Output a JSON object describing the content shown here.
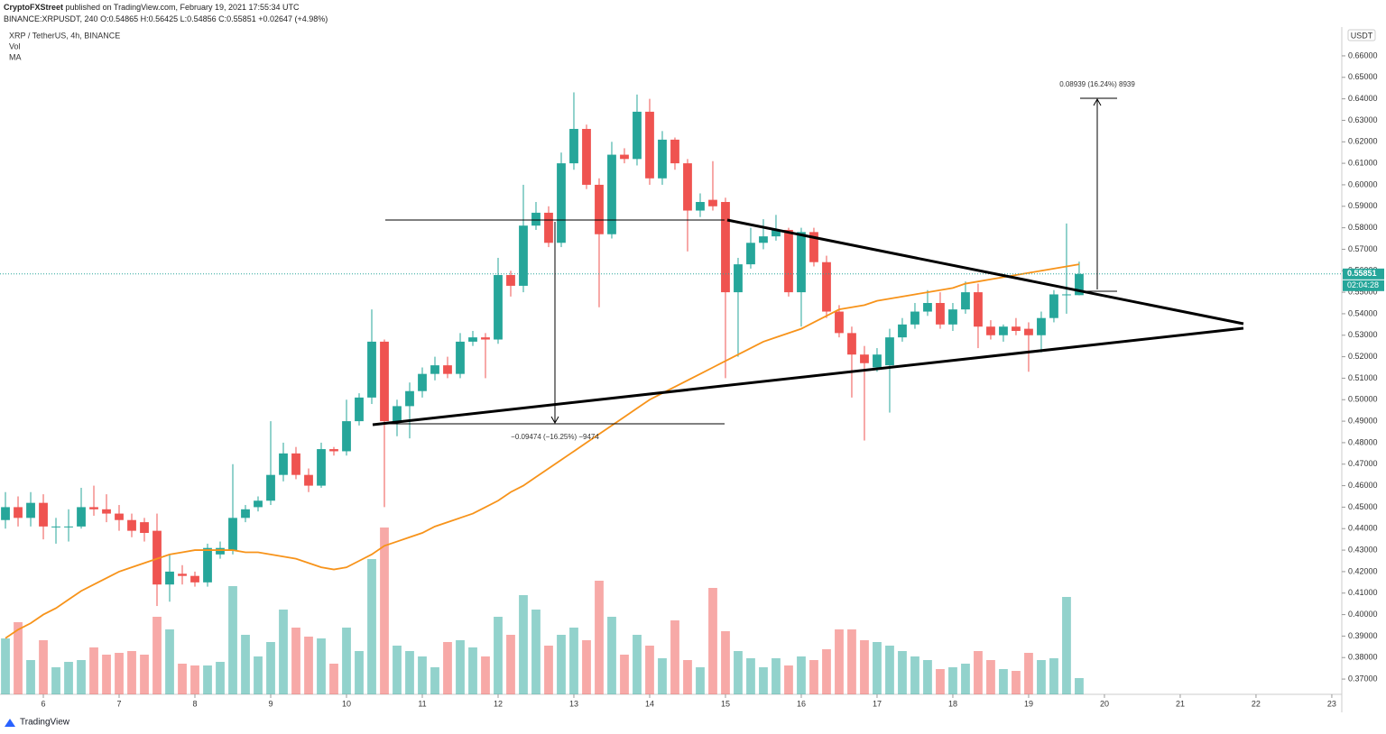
{
  "header": {
    "publisher": "CryptoFXStreet",
    "published": "published on TradingView.com, February 19, 2021 17:55:34 UTC",
    "symbol": "BINANCE:XRPUSDT, 240",
    "change": "+0.02647 (+4.98%)",
    "ohlc": "O:0.54865 H:0.56425 L:0.54856 C:0.55851"
  },
  "legend": [
    "XRP / TetherUS, 4h, BINANCE",
    "Vol",
    "MA"
  ],
  "currency": "USDT",
  "last_price_label": "0.55851",
  "countdown": "02:04:28",
  "annotations": {
    "upper_measure": "0.08939 (16.24%) 8939",
    "lower_measure": "−0.09474 (−16.25%) −9474"
  },
  "footer": "TradingView",
  "chart_data": {
    "type": "candlestick",
    "up_color": "#26a69a",
    "down_color": "#ef5350",
    "ma_color": "#f7931a",
    "open": [
      0.444,
      0.45,
      0.445,
      0.452,
      0.441,
      0.441,
      0.441,
      0.45,
      0.449,
      0.447,
      0.444,
      0.443,
      0.439,
      0.414,
      0.419,
      0.418,
      0.415,
      0.428,
      0.43,
      0.445,
      0.45,
      0.453,
      0.465,
      0.475,
      0.465,
      0.46,
      0.477,
      0.476,
      0.49,
      0.501,
      0.527,
      0.49,
      0.497,
      0.504,
      0.512,
      0.516,
      0.512,
      0.527,
      0.529,
      0.528,
      0.558,
      0.553,
      0.581,
      0.587,
      0.573,
      0.61,
      0.626,
      0.6,
      0.577,
      0.614,
      0.612,
      0.634,
      0.603,
      0.621,
      0.61,
      0.588,
      0.593,
      0.592,
      0.55,
      0.563,
      0.573,
      0.576,
      0.579,
      0.55,
      0.578,
      0.564,
      0.541,
      0.531,
      0.521,
      0.515,
      0.516,
      0.529,
      0.535,
      0.541,
      0.545,
      0.535,
      0.542,
      0.55,
      0.534,
      0.53,
      0.534,
      0.533,
      0.53,
      0.538,
      0.549,
      0.54865
    ],
    "high": [
      0.457,
      0.455,
      0.457,
      0.456,
      0.445,
      0.449,
      0.459,
      0.46,
      0.456,
      0.451,
      0.447,
      0.445,
      0.447,
      0.428,
      0.423,
      0.42,
      0.433,
      0.434,
      0.47,
      0.451,
      0.455,
      0.49,
      0.48,
      0.478,
      0.468,
      0.48,
      0.478,
      0.5,
      0.503,
      0.542,
      0.528,
      0.5,
      0.508,
      0.515,
      0.52,
      0.52,
      0.531,
      0.532,
      0.531,
      0.566,
      0.56,
      0.6,
      0.592,
      0.59,
      0.615,
      0.643,
      0.628,
      0.603,
      0.62,
      0.617,
      0.642,
      0.64,
      0.625,
      0.622,
      0.612,
      0.596,
      0.611,
      0.594,
      0.566,
      0.58,
      0.584,
      0.586,
      0.58,
      0.58,
      0.58,
      0.567,
      0.544,
      0.534,
      0.525,
      0.524,
      0.533,
      0.538,
      0.545,
      0.551,
      0.55,
      0.545,
      0.555,
      0.554,
      0.537,
      0.535,
      0.538,
      0.536,
      0.541,
      0.551,
      0.582,
      0.56425
    ],
    "low": [
      0.44,
      0.441,
      0.441,
      0.435,
      0.433,
      0.434,
      0.44,
      0.446,
      0.443,
      0.439,
      0.436,
      0.434,
      0.404,
      0.406,
      0.414,
      0.413,
      0.413,
      0.426,
      0.428,
      0.443,
      0.448,
      0.451,
      0.462,
      0.463,
      0.457,
      0.459,
      0.474,
      0.474,
      0.488,
      0.498,
      0.45,
      0.483,
      0.482,
      0.501,
      0.509,
      0.51,
      0.51,
      0.525,
      0.51,
      0.526,
      0.548,
      0.55,
      0.579,
      0.571,
      0.571,
      0.607,
      0.598,
      0.543,
      0.575,
      0.61,
      0.609,
      0.6,
      0.6,
      0.607,
      0.569,
      0.585,
      0.588,
      0.51,
      0.52,
      0.561,
      0.57,
      0.574,
      0.548,
      0.534,
      0.562,
      0.538,
      0.529,
      0.501,
      0.481,
      0.513,
      0.494,
      0.527,
      0.533,
      0.539,
      0.533,
      0.532,
      0.54,
      0.524,
      0.528,
      0.527,
      0.53,
      0.513,
      0.522,
      0.536,
      0.54,
      0.54856
    ],
    "close": [
      0.45,
      0.445,
      0.452,
      0.441,
      0.441,
      0.441,
      0.45,
      0.449,
      0.447,
      0.444,
      0.439,
      0.438,
      0.414,
      0.42,
      0.418,
      0.415,
      0.431,
      0.431,
      0.445,
      0.449,
      0.453,
      0.465,
      0.475,
      0.465,
      0.46,
      0.477,
      0.476,
      0.49,
      0.501,
      0.527,
      0.49,
      0.497,
      0.504,
      0.512,
      0.516,
      0.512,
      0.527,
      0.529,
      0.528,
      0.558,
      0.553,
      0.581,
      0.587,
      0.573,
      0.61,
      0.626,
      0.6,
      0.577,
      0.614,
      0.612,
      0.634,
      0.603,
      0.621,
      0.61,
      0.588,
      0.592,
      0.59,
      0.55,
      0.563,
      0.573,
      0.576,
      0.579,
      0.55,
      0.578,
      0.564,
      0.541,
      0.531,
      0.521,
      0.517,
      0.521,
      0.529,
      0.535,
      0.541,
      0.545,
      0.535,
      0.542,
      0.55,
      0.534,
      0.53,
      0.534,
      0.532,
      0.53,
      0.538,
      0.549,
      0.549,
      0.55851
    ],
    "volume": [
      62,
      80,
      38,
      60,
      30,
      36,
      38,
      52,
      44,
      46,
      48,
      44,
      86,
      72,
      34,
      32,
      32,
      36,
      120,
      66,
      42,
      58,
      94,
      74,
      64,
      62,
      34,
      74,
      48,
      150,
      185,
      54,
      48,
      42,
      30,
      58,
      60,
      52,
      42,
      86,
      66,
      110,
      94,
      54,
      66,
      74,
      60,
      126,
      86,
      44,
      66,
      54,
      40,
      82,
      38,
      30,
      118,
      70,
      48,
      40,
      30,
      40,
      32,
      42,
      38,
      50,
      72,
      72,
      60,
      58,
      54,
      48,
      42,
      38,
      28,
      30,
      34,
      48,
      38,
      28,
      26,
      46,
      38,
      40,
      108,
      18
    ],
    "ma": [
      0.389,
      0.393,
      0.396,
      0.4,
      0.403,
      0.407,
      0.411,
      0.414,
      0.417,
      0.42,
      0.422,
      0.424,
      0.426,
      0.428,
      0.429,
      0.43,
      0.43,
      0.43,
      0.43,
      0.429,
      0.429,
      0.428,
      0.427,
      0.426,
      0.424,
      0.422,
      0.421,
      0.422,
      0.425,
      0.428,
      0.432,
      0.434,
      0.436,
      0.438,
      0.441,
      0.443,
      0.445,
      0.447,
      0.45,
      0.453,
      0.457,
      0.46,
      0.464,
      0.468,
      0.472,
      0.476,
      0.48,
      0.484,
      0.488,
      0.492,
      0.496,
      0.5,
      0.503,
      0.506,
      0.509,
      0.512,
      0.515,
      0.518,
      0.521,
      0.524,
      0.527,
      0.529,
      0.531,
      0.533,
      0.536,
      0.539,
      0.542,
      0.543,
      0.544,
      0.546,
      0.547,
      0.548,
      0.549,
      0.55,
      0.551,
      0.552,
      0.554,
      0.555,
      0.556,
      0.557,
      0.558,
      0.559,
      0.56,
      0.561,
      0.562,
      0.563
    ],
    "xlim": [
      -0.43,
      105.79
    ],
    "xticks": [
      {
        "value": 3,
        "label": "6"
      },
      {
        "value": 9,
        "label": "7"
      },
      {
        "value": 15,
        "label": "8"
      },
      {
        "value": 21,
        "label": "9"
      },
      {
        "value": 27,
        "label": "10"
      },
      {
        "value": 33,
        "label": "11"
      },
      {
        "value": 39,
        "label": "12"
      },
      {
        "value": 45,
        "label": "13"
      },
      {
        "value": 51,
        "label": "14"
      },
      {
        "value": 57,
        "label": "15"
      },
      {
        "value": 63,
        "label": "16"
      },
      {
        "value": 69,
        "label": "17"
      },
      {
        "value": 75,
        "label": "18"
      },
      {
        "value": 81,
        "label": "19"
      },
      {
        "value": 87,
        "label": "20"
      },
      {
        "value": 93,
        "label": "21"
      },
      {
        "value": 99,
        "label": "22"
      },
      {
        "value": 105,
        "label": "23"
      }
    ],
    "ylim": [
      0.3629,
      0.6734
    ],
    "yticks": [
      {
        "value": 0.37,
        "label": "0.37000"
      },
      {
        "value": 0.38,
        "label": "0.38000"
      },
      {
        "value": 0.39,
        "label": "0.39000"
      },
      {
        "value": 0.4,
        "label": "0.40000"
      },
      {
        "value": 0.41,
        "label": "0.41000"
      },
      {
        "value": 0.42,
        "label": "0.42000"
      },
      {
        "value": 0.43,
        "label": "0.43000"
      },
      {
        "value": 0.44,
        "label": "0.44000"
      },
      {
        "value": 0.45,
        "label": "0.45000"
      },
      {
        "value": 0.46,
        "label": "0.46000"
      },
      {
        "value": 0.47,
        "label": "0.47000"
      },
      {
        "value": 0.48,
        "label": "0.48000"
      },
      {
        "value": 0.49,
        "label": "0.49000"
      },
      {
        "value": 0.5,
        "label": "0.50000"
      },
      {
        "value": 0.51,
        "label": "0.51000"
      },
      {
        "value": 0.52,
        "label": "0.52000"
      },
      {
        "value": 0.53,
        "label": "0.53000"
      },
      {
        "value": 0.54,
        "label": "0.54000"
      },
      {
        "value": 0.55,
        "label": "0.55000"
      },
      {
        "value": 0.56,
        "label": "0.56000"
      },
      {
        "value": 0.57,
        "label": "0.57000"
      },
      {
        "value": 0.58,
        "label": "0.58000"
      },
      {
        "value": 0.59,
        "label": "0.59000"
      },
      {
        "value": 0.6,
        "label": "0.60000"
      },
      {
        "value": 0.61,
        "label": "0.61000"
      },
      {
        "value": 0.62,
        "label": "0.62000"
      },
      {
        "value": 0.63,
        "label": "0.63000"
      },
      {
        "value": 0.64,
        "label": "0.64000"
      },
      {
        "value": 0.65,
        "label": "0.65000"
      },
      {
        "value": 0.66,
        "label": "0.66000"
      }
    ],
    "last_price": 0.55851
  }
}
